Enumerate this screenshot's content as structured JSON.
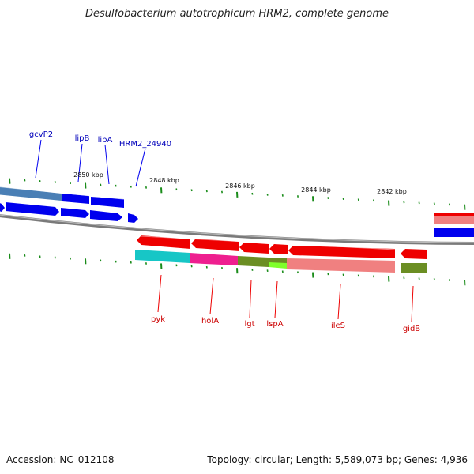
{
  "title": "Desulfobacterium autotrophicum HRM2, complete genome",
  "accession": {
    "label": "Accession:",
    "value": "NC_012108"
  },
  "summary": "Topology: circular; Length: 5,589,073 bp; Genes: 4,936",
  "scale_labels": [
    "2850 kbp",
    "2848 kbp",
    "2846 kbp",
    "2844 kbp",
    "2842 kbp"
  ],
  "colors": {
    "forward_genes": "#0000ee",
    "reverse_genes": "#ee0000",
    "backbone": "#808080",
    "ticks": "#1a8c1a",
    "cyan": "#17c6c6",
    "magenta": "#ee1f8f",
    "olive": "#6b8e23",
    "lime": "#7fff2a",
    "salmon": "#f08080",
    "steelblue": "#4a7fb5"
  },
  "gene_labels_top": [
    "gcvP2",
    "lipB",
    "lipA",
    "HRM2_24940"
  ],
  "gene_labels_bottom": [
    "pyk",
    "holA",
    "lgt",
    "lspA",
    "ileS",
    "gidB"
  ]
}
